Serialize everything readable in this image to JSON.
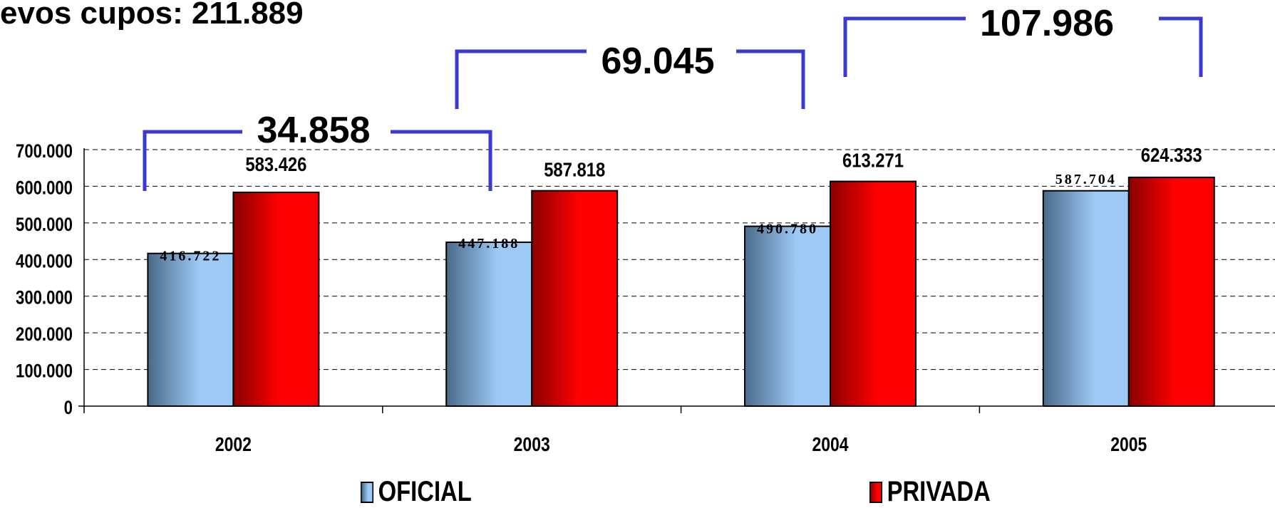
{
  "headline": "evos cupos: 211.889",
  "legend": {
    "oficial": "OFICIAL",
    "privada": "PRIVADA"
  },
  "colors": {
    "oficial_dark": "#4a6a8a",
    "oficial_light": "#9ccaf5",
    "privada_dark": "#8a0000",
    "privada_light": "#ff0000",
    "bracket": "#3a3ad0"
  },
  "chart_data": {
    "type": "bar",
    "categories": [
      "2002",
      "2003",
      "2004",
      "2005"
    ],
    "series": [
      {
        "name": "OFICIAL",
        "values": [
          416722,
          447188,
          490780,
          587704
        ],
        "labels": [
          "416.722",
          "447.188",
          "490.780",
          "587.704"
        ]
      },
      {
        "name": "PRIVADA",
        "values": [
          583426,
          587818,
          613271,
          624333
        ],
        "labels": [
          "583.426",
          "587.818",
          "613.271",
          "624.333"
        ]
      }
    ],
    "y_ticks": [
      "0",
      "100.000",
      "200.000",
      "300.000",
      "400.000",
      "500.000",
      "600.000",
      "700.000"
    ],
    "ylim": [
      0,
      700000
    ],
    "grid": true,
    "legend_position": "bottom",
    "annotations": [
      {
        "label": "34.858",
        "from": "2002",
        "to": "2003"
      },
      {
        "label": "69.045",
        "from": "2003",
        "to": "2004"
      },
      {
        "label": "107.986",
        "from": "2004",
        "to": "2005"
      }
    ]
  }
}
